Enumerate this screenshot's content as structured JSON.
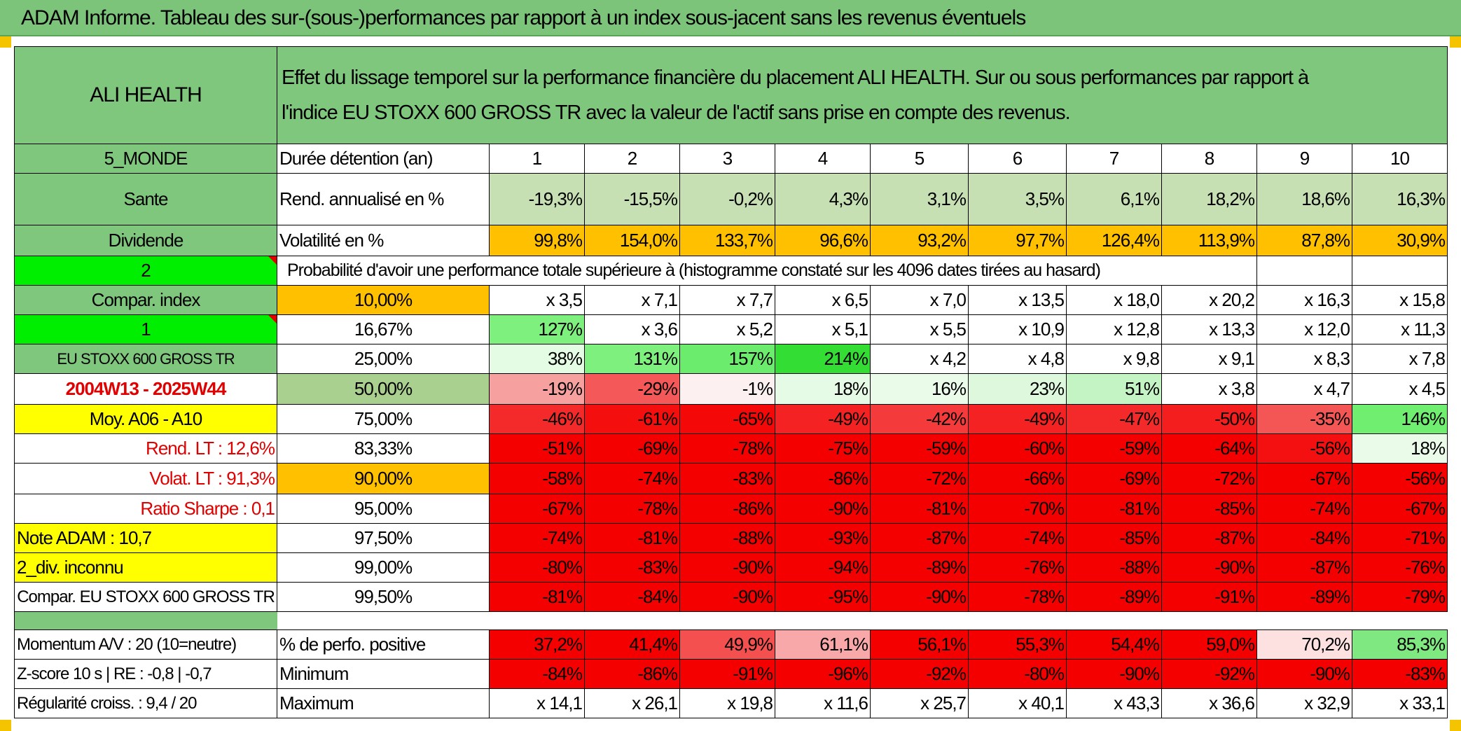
{
  "title": "ADAM Informe. Tableau des sur-(sous-)performances par rapport à un index sous-jacent sans les revenus éventuels",
  "header": {
    "asset": "ALI HEALTH",
    "description_line1": "Effet du lissage temporel sur la performance financière du placement ALI HEALTH. Sur ou sous performances par rapport à",
    "description_line2": "l'indice EU STOXX 600 GROSS TR avec la valeur de l'actif sans prise en compte des revenus."
  },
  "left_labels": {
    "zone": "5_MONDE",
    "sector": "Sante",
    "type": "Dividende",
    "num_2": "2",
    "compar_index": "Compar. index",
    "num_1": "1",
    "index_name": "EU STOXX 600 GROSS TR",
    "period": "2004W13 - 2025W44",
    "moy": "Moy. A06 - A10",
    "rend_lt": "Rend. LT :    12,6%",
    "volat_lt": "Volat. LT :    91,3%",
    "ratio_sharpe": "Ratio Sharpe :    0,1",
    "note_adam": "Note ADAM : 10,7",
    "div_inconnu": "2_div. inconnu",
    "compar_full": "Compar. EU STOXX 600 GROSS TR",
    "momentum": "Momentum A/V : 20 (10=neutre)",
    "zscore": "Z-score 10 s | RE : -0,8 | -0,7",
    "regularite": "Régularité croiss. : 9,4 / 20"
  },
  "row_labels": {
    "duree": "Durée détention (an)",
    "rend": "Rend. annualisé en %",
    "volat": "Volatilité en %",
    "proba": "Probabilité d'avoir une performance totale supérieure à (histogramme constaté sur les 4096 dates tirées au hasard)",
    "positive": "% de perfo. positive",
    "minimum": "Minimum",
    "maximum": "Maximum"
  },
  "years": [
    "1",
    "2",
    "3",
    "4",
    "5",
    "6",
    "7",
    "8",
    "9",
    "10"
  ],
  "rend": [
    "-19,3%",
    "-15,5%",
    "-0,2%",
    "4,3%",
    "3,1%",
    "3,5%",
    "6,1%",
    "18,2%",
    "18,6%",
    "16,3%"
  ],
  "volat": [
    "99,8%",
    "154,0%",
    "133,7%",
    "96,6%",
    "93,2%",
    "97,7%",
    "126,4%",
    "113,9%",
    "87,8%",
    "30,9%"
  ],
  "quantile_rows": [
    {
      "pct": "10,00%",
      "values": [
        "x 3,5",
        "x 7,1",
        "x 7,7",
        "x 6,5",
        "x 7,0",
        "x 13,5",
        "x 18,0",
        "x 20,2",
        "x 16,3",
        "x 15,8"
      ],
      "colors": [
        "#ffffff",
        "#ffffff",
        "#ffffff",
        "#ffffff",
        "#ffffff",
        "#ffffff",
        "#ffffff",
        "#ffffff",
        "#ffffff",
        "#ffffff"
      ]
    },
    {
      "pct": "16,67%",
      "values": [
        "127%",
        "x 3,6",
        "x 5,2",
        "x 5,1",
        "x 5,5",
        "x 10,9",
        "x 12,8",
        "x 13,3",
        "x 12,0",
        "x 11,3"
      ],
      "colors": [
        "#7ef07e",
        "#ffffff",
        "#ffffff",
        "#ffffff",
        "#ffffff",
        "#ffffff",
        "#ffffff",
        "#ffffff",
        "#ffffff",
        "#ffffff"
      ]
    },
    {
      "pct": "25,00%",
      "values": [
        "38%",
        "131%",
        "157%",
        "214%",
        "x 4,2",
        "x 4,8",
        "x 9,8",
        "x 9,1",
        "x 8,3",
        "x 7,8"
      ],
      "colors": [
        "#e4fce4",
        "#7ef07e",
        "#6cec6c",
        "#33dd33",
        "#ffffff",
        "#ffffff",
        "#ffffff",
        "#ffffff",
        "#ffffff",
        "#ffffff"
      ]
    },
    {
      "pct": "50,00%",
      "values": [
        "-19%",
        "-29%",
        "-1%",
        "18%",
        "16%",
        "23%",
        "51%",
        "x 3,8",
        "x 4,7",
        "x 4,5"
      ],
      "colors": [
        "#f7a0a0",
        "#f45858",
        "#fdf0f0",
        "#e6fbe6",
        "#eafbea",
        "#ddf8dd",
        "#c4f4c4",
        "#ffffff",
        "#ffffff",
        "#ffffff"
      ]
    },
    {
      "pct": "75,00%",
      "values": [
        "-46%",
        "-61%",
        "-65%",
        "-49%",
        "-42%",
        "-49%",
        "-47%",
        "-50%",
        "-35%",
        "146%"
      ],
      "colors": [
        "#f42a2a",
        "#f40e0e",
        "#f40808",
        "#f42222",
        "#f43a3a",
        "#f42222",
        "#f42a2a",
        "#f41e1e",
        "#f45555",
        "#70ee70"
      ]
    },
    {
      "pct": "83,33%",
      "values": [
        "-51%",
        "-69%",
        "-78%",
        "-75%",
        "-59%",
        "-60%",
        "-59%",
        "-64%",
        "-56%",
        "18%"
      ],
      "colors": [
        "#f40000",
        "#f40000",
        "#f40000",
        "#f40000",
        "#f40000",
        "#f40000",
        "#f40000",
        "#f40000",
        "#f41010",
        "#eafbea"
      ]
    },
    {
      "pct": "90,00%",
      "values": [
        "-58%",
        "-74%",
        "-83%",
        "-86%",
        "-72%",
        "-66%",
        "-69%",
        "-72%",
        "-67%",
        "-56%"
      ],
      "colors": [
        "#f40000",
        "#f40000",
        "#f40000",
        "#f40000",
        "#f40000",
        "#f40000",
        "#f40000",
        "#f40000",
        "#f40000",
        "#f40000"
      ]
    },
    {
      "pct": "95,00%",
      "values": [
        "-67%",
        "-78%",
        "-86%",
        "-90%",
        "-81%",
        "-70%",
        "-81%",
        "-85%",
        "-74%",
        "-67%"
      ],
      "colors": [
        "#f40000",
        "#f40000",
        "#f40000",
        "#f40000",
        "#f40000",
        "#f40000",
        "#f40000",
        "#f40000",
        "#f40000",
        "#f40000"
      ]
    },
    {
      "pct": "97,50%",
      "values": [
        "-74%",
        "-81%",
        "-88%",
        "-93%",
        "-87%",
        "-74%",
        "-85%",
        "-87%",
        "-84%",
        "-71%"
      ],
      "colors": [
        "#f40000",
        "#f40000",
        "#f40000",
        "#f40000",
        "#f40000",
        "#f40000",
        "#f40000",
        "#f40000",
        "#f40000",
        "#f40000"
      ]
    },
    {
      "pct": "99,00%",
      "values": [
        "-80%",
        "-83%",
        "-90%",
        "-94%",
        "-89%",
        "-76%",
        "-88%",
        "-90%",
        "-87%",
        "-76%"
      ],
      "colors": [
        "#f40000",
        "#f40000",
        "#f40000",
        "#f40000",
        "#f40000",
        "#f40000",
        "#f40000",
        "#f40000",
        "#f40000",
        "#f40000"
      ]
    },
    {
      "pct": "99,50%",
      "values": [
        "-81%",
        "-84%",
        "-90%",
        "-95%",
        "-90%",
        "-78%",
        "-89%",
        "-91%",
        "-89%",
        "-79%"
      ],
      "colors": [
        "#f40000",
        "#f40000",
        "#f40000",
        "#f40000",
        "#f40000",
        "#f40000",
        "#f40000",
        "#f40000",
        "#f40000",
        "#f40000"
      ]
    }
  ],
  "positive": [
    "37,2%",
    "41,4%",
    "49,9%",
    "61,1%",
    "56,1%",
    "55,3%",
    "54,4%",
    "59,0%",
    "70,2%",
    "85,3%"
  ],
  "positive_colors": [
    "#f40000",
    "#f40000",
    "#f45050",
    "#f8a8a8",
    "#f40000",
    "#f40000",
    "#f40000",
    "#f40000",
    "#fde0e0",
    "#80e880"
  ],
  "minimum": [
    "-84%",
    "-86%",
    "-91%",
    "-96%",
    "-92%",
    "-80%",
    "-90%",
    "-92%",
    "-90%",
    "-83%"
  ],
  "maximum": [
    "x 14,1",
    "x 26,1",
    "x 19,8",
    "x 11,6",
    "x 25,7",
    "x 40,1",
    "x 43,3",
    "x 36,6",
    "x 32,9",
    "x 33,1"
  ],
  "colors": {
    "header_green": "#80c77e",
    "light_green": "#c6e0b4",
    "lime": "#00ee00",
    "orange": "#ffc000",
    "yellow": "#ffff00",
    "red_text": "#e00000",
    "red_fill": "#f40000"
  }
}
